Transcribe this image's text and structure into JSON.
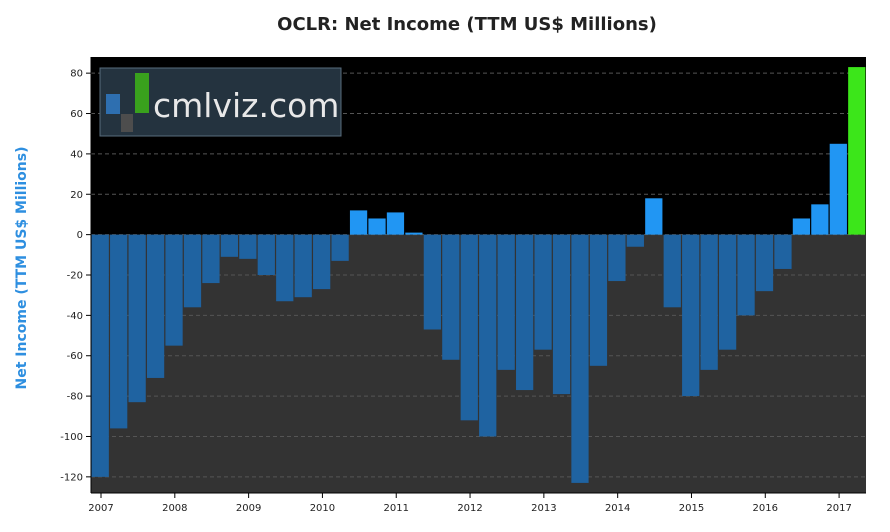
{
  "chart_data": {
    "type": "bar",
    "title": "OCLR: Net Income (TTM US$ Millions)",
    "ylabel": "Net Income (TTM US$ Millions)",
    "xlabel": "",
    "ylim": [
      -128,
      88
    ],
    "yticks": [
      80,
      60,
      40,
      20,
      0,
      -20,
      -40,
      -60,
      -80,
      -100,
      -120
    ],
    "x_tick_labels": [
      "2007",
      "2008",
      "2009",
      "2010",
      "2011",
      "2012",
      "2013",
      "2014",
      "2015",
      "2016",
      "2017"
    ],
    "values": [
      -120,
      -96,
      -83,
      -71,
      -55,
      -36,
      -24,
      -11,
      -12,
      -20,
      -33,
      -31,
      -27,
      -13,
      12,
      8,
      11,
      1,
      -47,
      -62,
      -92,
      -100,
      -67,
      -77,
      -57,
      -79,
      -123,
      -65,
      -23,
      -6,
      18,
      -36,
      -80,
      -67,
      -57,
      -40,
      -28,
      -17,
      8,
      15,
      45,
      83
    ],
    "grid": true,
    "colors": {
      "positive": "#2196f3",
      "negative": "#1f63a1",
      "latest": "#3ce61a",
      "plot_background": "#000000",
      "below_zero_background": "#333333",
      "grid": "#555555"
    }
  },
  "watermark": {
    "text": "cmlviz.com"
  }
}
